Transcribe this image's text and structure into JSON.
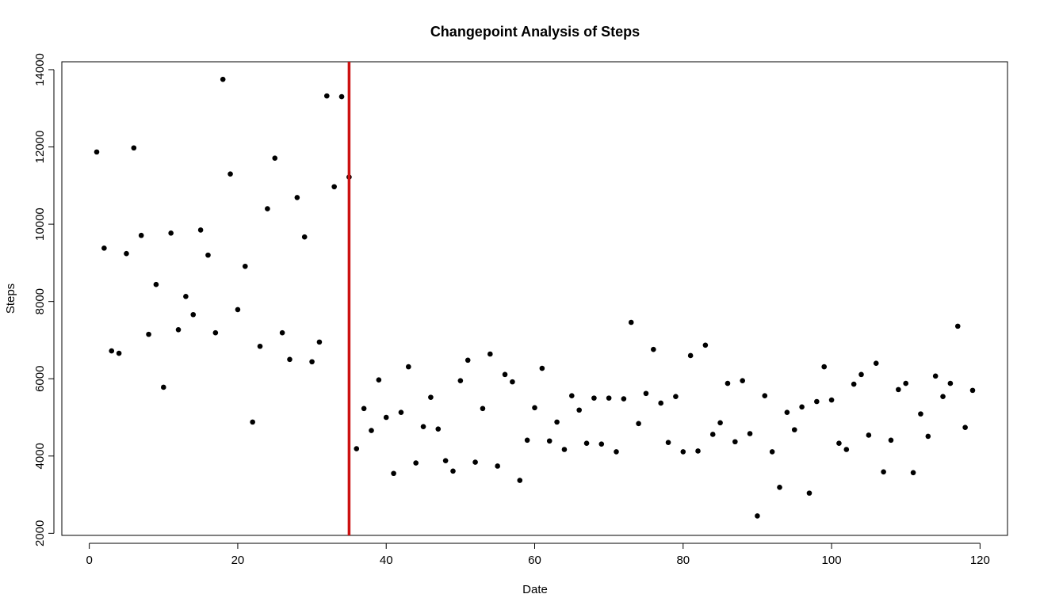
{
  "chart_data": {
    "type": "scatter",
    "title": "Changepoint Analysis of Steps",
    "x_label": "Date",
    "y_label": "Steps",
    "x": [
      1,
      2,
      3,
      4,
      5,
      6,
      7,
      8,
      9,
      10,
      11,
      12,
      13,
      14,
      15,
      16,
      17,
      18,
      19,
      20,
      21,
      22,
      23,
      24,
      25,
      26,
      27,
      28,
      29,
      30,
      31,
      32,
      33,
      34,
      35,
      36,
      37,
      38,
      39,
      40,
      41,
      42,
      43,
      44,
      45,
      46,
      47,
      48,
      49,
      50,
      51,
      52,
      53,
      54,
      55,
      56,
      57,
      58,
      59,
      60,
      61,
      62,
      63,
      64,
      65,
      66,
      67,
      68,
      69,
      70,
      71,
      72,
      73,
      74,
      75,
      76,
      77,
      78,
      79,
      80,
      81,
      82,
      83,
      84,
      85,
      86,
      87,
      88,
      89,
      90,
      91,
      92,
      93,
      94,
      95,
      96,
      97,
      98,
      99,
      100,
      101,
      102,
      103,
      104,
      105,
      106,
      107,
      108,
      109,
      110,
      111,
      112,
      113,
      114,
      115,
      116,
      117,
      118,
      119
    ],
    "values": [
      11870,
      9380,
      6720,
      6660,
      9240,
      11975,
      9710,
      7150,
      8440,
      5780,
      9770,
      7270,
      8130,
      7660,
      9850,
      9200,
      7190,
      13750,
      11300,
      7790,
      8910,
      4880,
      6840,
      10400,
      11710,
      7190,
      6500,
      10690,
      9670,
      6440,
      6950,
      13320,
      10970,
      13300,
      11220,
      4190,
      5230,
      4660,
      5970,
      5000,
      3550,
      5130,
      6310,
      3820,
      4760,
      5520,
      4700,
      3880,
      3610,
      5950,
      6480,
      3840,
      5230,
      6640,
      3740,
      6110,
      5920,
      3370,
      4410,
      5250,
      6270,
      4390,
      4880,
      4170,
      5560,
      5190,
      4330,
      5500,
      4310,
      5500,
      4110,
      5480,
      7460,
      4840,
      5620,
      6760,
      5370,
      4350,
      5540,
      4110,
      6600,
      4130,
      6870,
      4560,
      4860,
      5880,
      4370,
      5950,
      4580,
      2450,
      5560,
      4110,
      3190,
      5130,
      4680,
      5270,
      3040,
      5410,
      6310,
      5450,
      4330,
      4170,
      5860,
      6110,
      4540,
      6400,
      3590,
      4410,
      5720,
      5880,
      3570,
      5090,
      4510,
      6070,
      5540,
      5880,
      7360,
      4740,
      5700
    ],
    "color": "#000000",
    "changepoints": [
      35
    ],
    "changepoint_color": "#cc1111",
    "xlim": [
      -3.7,
      123.7
    ],
    "ylim": [
      1946,
      14204
    ],
    "xticks": [
      0,
      20,
      40,
      60,
      80,
      100,
      120
    ],
    "yticks": [
      2000,
      4000,
      6000,
      8000,
      10000,
      12000,
      14000
    ]
  }
}
